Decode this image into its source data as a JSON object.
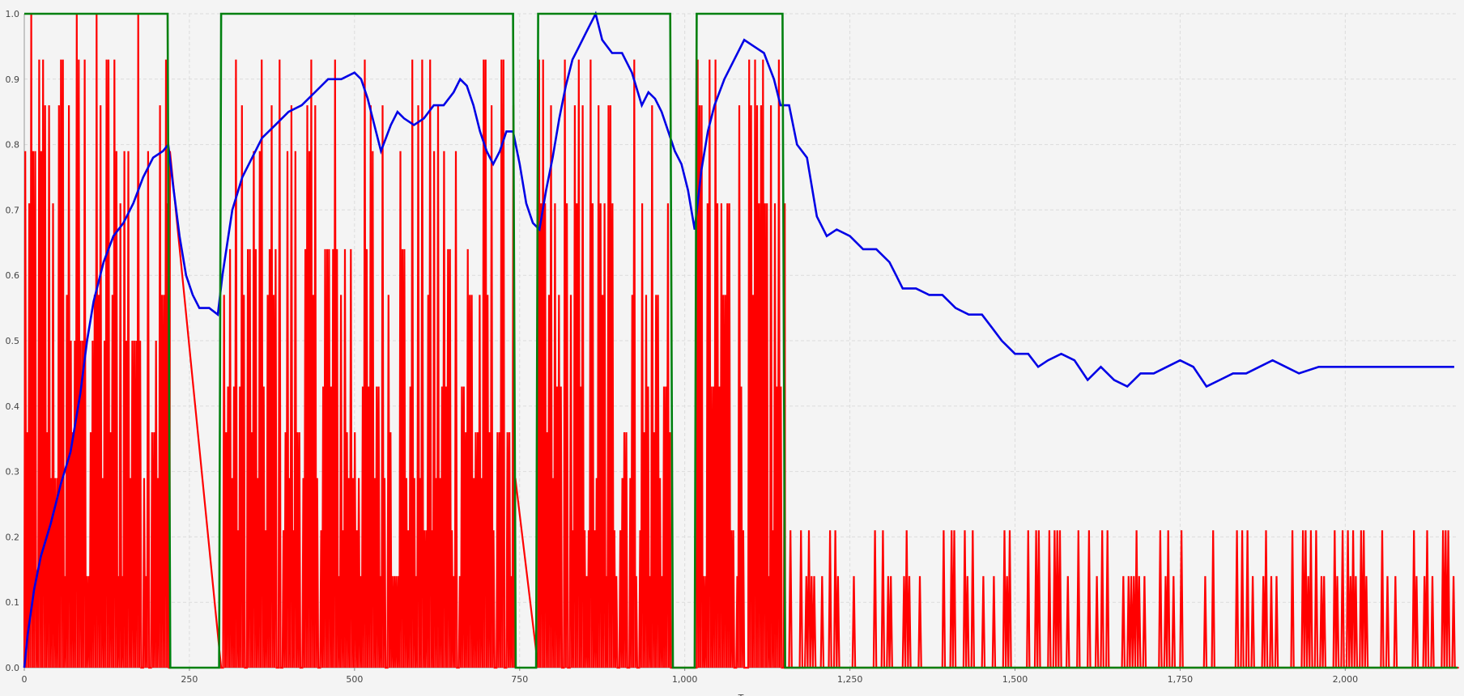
{
  "chart_data": {
    "type": "line",
    "title": "",
    "xlabel": "T",
    "ylabel": "",
    "xlim": [
      0,
      2170
    ],
    "ylim": [
      0,
      1.0
    ],
    "grid": true,
    "legend": "none",
    "x_ticks": [
      0,
      250,
      500,
      750,
      1000,
      1250,
      1500,
      1750,
      2000
    ],
    "x_tick_labels": [
      "0",
      "250",
      "500",
      "750",
      "1,000",
      "1,250",
      "1,500",
      "1,750",
      "2,000"
    ],
    "y_ticks": [
      0.0,
      0.1,
      0.2,
      0.3,
      0.4,
      0.5,
      0.6,
      0.7,
      0.8,
      0.9,
      1.0
    ],
    "y_tick_labels": [
      "0.0",
      "0.1",
      "0.2",
      "0.3",
      "0.4",
      "0.5",
      "0.6",
      "0.7",
      "0.8",
      "0.9",
      "1.0"
    ],
    "series": [
      {
        "color": "#00800f",
        "points": [
          [
            0,
            1
          ],
          [
            217,
            1
          ],
          [
            221,
            0
          ],
          [
            295,
            0
          ],
          [
            298,
            1
          ],
          [
            740,
            1
          ],
          [
            744,
            0
          ],
          [
            775,
            0
          ],
          [
            778,
            1
          ],
          [
            978,
            1
          ],
          [
            982,
            0
          ],
          [
            1015,
            0
          ],
          [
            1018,
            1
          ],
          [
            1148,
            1
          ],
          [
            1152,
            0
          ],
          [
            2170,
            0
          ]
        ]
      },
      {
        "color": "#0000e6",
        "points": [
          [
            0,
            0
          ],
          [
            5,
            0.05
          ],
          [
            15,
            0.12
          ],
          [
            25,
            0.17
          ],
          [
            40,
            0.22
          ],
          [
            55,
            0.28
          ],
          [
            70,
            0.33
          ],
          [
            85,
            0.42
          ],
          [
            95,
            0.5
          ],
          [
            105,
            0.56
          ],
          [
            120,
            0.62
          ],
          [
            135,
            0.66
          ],
          [
            150,
            0.68
          ],
          [
            165,
            0.71
          ],
          [
            180,
            0.75
          ],
          [
            195,
            0.78
          ],
          [
            210,
            0.79
          ],
          [
            218,
            0.8
          ],
          [
            225,
            0.74
          ],
          [
            235,
            0.66
          ],
          [
            245,
            0.6
          ],
          [
            255,
            0.57
          ],
          [
            265,
            0.55
          ],
          [
            280,
            0.55
          ],
          [
            293,
            0.54
          ],
          [
            300,
            0.6
          ],
          [
            315,
            0.7
          ],
          [
            330,
            0.75
          ],
          [
            345,
            0.78
          ],
          [
            360,
            0.81
          ],
          [
            380,
            0.83
          ],
          [
            400,
            0.85
          ],
          [
            420,
            0.86
          ],
          [
            440,
            0.88
          ],
          [
            460,
            0.9
          ],
          [
            480,
            0.9
          ],
          [
            500,
            0.91
          ],
          [
            510,
            0.9
          ],
          [
            520,
            0.87
          ],
          [
            530,
            0.83
          ],
          [
            540,
            0.79
          ],
          [
            555,
            0.83
          ],
          [
            565,
            0.85
          ],
          [
            575,
            0.84
          ],
          [
            590,
            0.83
          ],
          [
            605,
            0.84
          ],
          [
            620,
            0.86
          ],
          [
            635,
            0.86
          ],
          [
            650,
            0.88
          ],
          [
            660,
            0.9
          ],
          [
            670,
            0.89
          ],
          [
            680,
            0.86
          ],
          [
            690,
            0.82
          ],
          [
            700,
            0.79
          ],
          [
            710,
            0.77
          ],
          [
            720,
            0.79
          ],
          [
            730,
            0.82
          ],
          [
            740,
            0.82
          ],
          [
            750,
            0.77
          ],
          [
            760,
            0.71
          ],
          [
            770,
            0.68
          ],
          [
            780,
            0.67
          ],
          [
            790,
            0.73
          ],
          [
            800,
            0.78
          ],
          [
            810,
            0.84
          ],
          [
            820,
            0.89
          ],
          [
            830,
            0.93
          ],
          [
            840,
            0.95
          ],
          [
            850,
            0.97
          ],
          [
            865,
            1.0
          ],
          [
            875,
            0.96
          ],
          [
            890,
            0.94
          ],
          [
            905,
            0.94
          ],
          [
            920,
            0.91
          ],
          [
            935,
            0.86
          ],
          [
            945,
            0.88
          ],
          [
            955,
            0.87
          ],
          [
            965,
            0.85
          ],
          [
            975,
            0.82
          ],
          [
            985,
            0.79
          ],
          [
            995,
            0.77
          ],
          [
            1005,
            0.73
          ],
          [
            1015,
            0.67
          ],
          [
            1025,
            0.76
          ],
          [
            1035,
            0.82
          ],
          [
            1045,
            0.86
          ],
          [
            1060,
            0.9
          ],
          [
            1075,
            0.93
          ],
          [
            1090,
            0.96
          ],
          [
            1105,
            0.95
          ],
          [
            1120,
            0.94
          ],
          [
            1135,
            0.9
          ],
          [
            1145,
            0.86
          ],
          [
            1158,
            0.86
          ],
          [
            1170,
            0.8
          ],
          [
            1185,
            0.78
          ],
          [
            1200,
            0.69
          ],
          [
            1215,
            0.66
          ],
          [
            1230,
            0.67
          ],
          [
            1250,
            0.66
          ],
          [
            1270,
            0.64
          ],
          [
            1290,
            0.64
          ],
          [
            1310,
            0.62
          ],
          [
            1320,
            0.6
          ],
          [
            1330,
            0.58
          ],
          [
            1350,
            0.58
          ],
          [
            1370,
            0.57
          ],
          [
            1390,
            0.57
          ],
          [
            1410,
            0.55
          ],
          [
            1430,
            0.54
          ],
          [
            1450,
            0.54
          ],
          [
            1465,
            0.52
          ],
          [
            1480,
            0.5
          ],
          [
            1500,
            0.48
          ],
          [
            1520,
            0.48
          ],
          [
            1535,
            0.46
          ],
          [
            1550,
            0.47
          ],
          [
            1570,
            0.48
          ],
          [
            1590,
            0.47
          ],
          [
            1610,
            0.44
          ],
          [
            1630,
            0.46
          ],
          [
            1650,
            0.44
          ],
          [
            1670,
            0.43
          ],
          [
            1690,
            0.45
          ],
          [
            1710,
            0.45
          ],
          [
            1730,
            0.46
          ],
          [
            1750,
            0.47
          ],
          [
            1770,
            0.46
          ],
          [
            1790,
            0.43
          ],
          [
            1810,
            0.44
          ],
          [
            1830,
            0.45
          ],
          [
            1850,
            0.45
          ],
          [
            1870,
            0.46
          ],
          [
            1890,
            0.47
          ],
          [
            1910,
            0.46
          ],
          [
            1930,
            0.45
          ],
          [
            1960,
            0.46
          ],
          [
            1990,
            0.46
          ],
          [
            2020,
            0.46
          ],
          [
            2050,
            0.46
          ],
          [
            2080,
            0.46
          ],
          [
            2110,
            0.46
          ],
          [
            2140,
            0.46
          ],
          [
            2165,
            0.46
          ]
        ]
      },
      {
        "color": "#ff0000",
        "generator": "spiky",
        "segments": [
          {
            "x0": 0,
            "x1": 220,
            "step": 3,
            "levels": [
              0.0,
              0.14,
              0.29,
              0.36,
              0.5,
              0.57,
              0.71,
              0.79,
              0.86,
              0.93,
              1.0
            ]
          },
          {
            "x0": 298,
            "x1": 742,
            "step": 3,
            "levels": [
              0.0,
              0.14,
              0.21,
              0.29,
              0.36,
              0.43,
              0.57,
              0.64,
              0.79,
              0.86,
              0.93
            ]
          },
          {
            "x0": 778,
            "x1": 980,
            "step": 3,
            "levels": [
              0.0,
              0.14,
              0.21,
              0.29,
              0.36,
              0.43,
              0.57,
              0.71,
              0.86,
              0.93
            ]
          },
          {
            "x0": 1018,
            "x1": 1150,
            "step": 3,
            "levels": [
              0.0,
              0.14,
              0.21,
              0.43,
              0.57,
              0.71,
              0.86,
              0.93
            ]
          },
          {
            "x0": 1150,
            "x1": 2170,
            "step": 4,
            "levels": [
              0.0,
              0.0,
              0.0,
              0.14,
              0.21
            ]
          }
        ]
      }
    ]
  }
}
